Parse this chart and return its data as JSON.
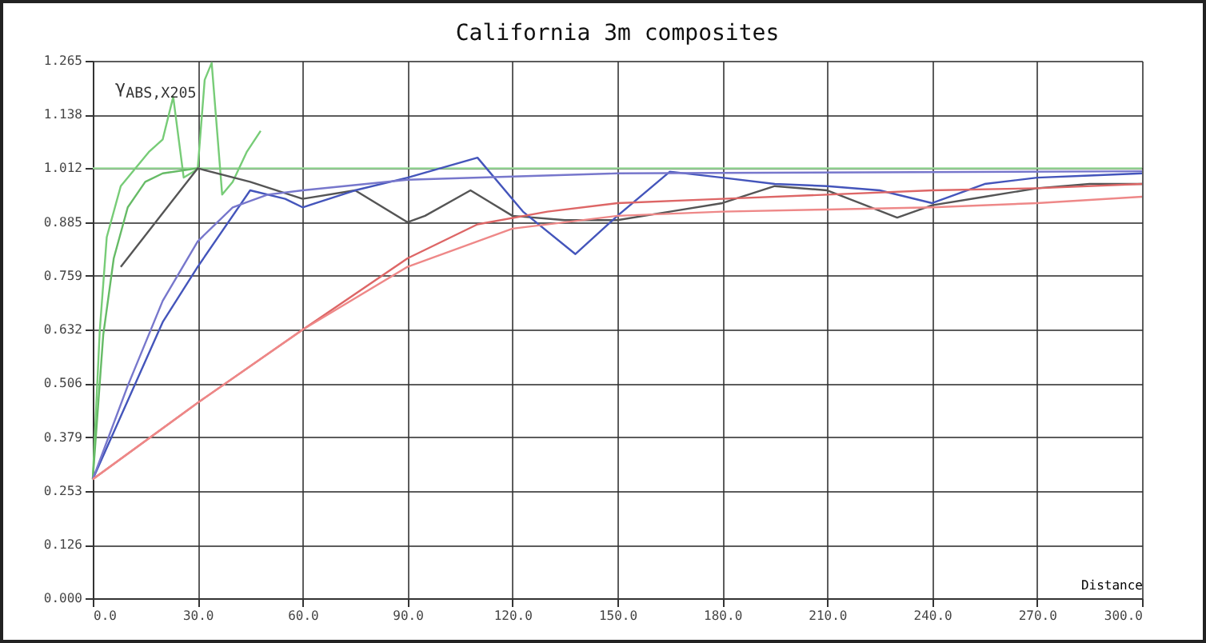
{
  "chart_data": {
    "type": "line",
    "title": "California 3m composites",
    "xlabel": "Distance",
    "ylabel": "γ$_{ABS,X205}$",
    "xlim": [
      0,
      300
    ],
    "xticks": [
      {
        "value": 0,
        "label": "0.0"
      },
      {
        "value": 30,
        "label": "30.0"
      },
      {
        "value": 60,
        "label": "60.0"
      },
      {
        "value": 90,
        "label": "90.0"
      },
      {
        "value": 120,
        "label": "120.0"
      },
      {
        "value": 150,
        "label": "150.0"
      },
      {
        "value": 180,
        "label": "180.0"
      },
      {
        "value": 210,
        "label": "210.0"
      },
      {
        "value": 240,
        "label": "240.0"
      },
      {
        "value": 270,
        "label": "270.0"
      },
      {
        "value": 300,
        "label": "300.0"
      }
    ],
    "ylim": [
      0,
      1.265
    ],
    "yticks": [
      {
        "value": 0,
        "label": "0.000"
      },
      0.126,
      0.253,
      0.379,
      0.506,
      0.632,
      0.759,
      0.885,
      1.012,
      1.138,
      1.265
    ],
    "grid": true,
    "legend": false,
    "marker": "none",
    "line_style": "solid",
    "series": [
      {
        "color": "#99dd99",
        "x": [
          0,
          300
        ],
        "values": [
          1.012,
          1.012
        ]
      },
      {
        "color": "#77cc77",
        "x": [
          0,
          2,
          4,
          8,
          12,
          16,
          20,
          23,
          26,
          30,
          32,
          34,
          37,
          40,
          44,
          48
        ],
        "values": [
          0.28,
          0.63,
          0.85,
          0.97,
          1.01,
          1.05,
          1.08,
          1.18,
          0.99,
          1.01,
          1.22,
          1.26,
          0.95,
          0.98,
          1.05,
          1.1
        ]
      },
      {
        "color": "#66bb66",
        "x": [
          0,
          3,
          6,
          10,
          15,
          20,
          30
        ],
        "values": [
          0.28,
          0.62,
          0.8,
          0.92,
          0.98,
          1.0,
          1.012
        ]
      },
      {
        "color": "#555555",
        "x": [
          8,
          30,
          45,
          60,
          75,
          90,
          95,
          108,
          120,
          135,
          150,
          165,
          180,
          195,
          210,
          230,
          240,
          255,
          270,
          285,
          300
        ],
        "values": [
          0.78,
          1.012,
          0.98,
          0.94,
          0.96,
          0.885,
          0.9,
          0.96,
          0.9,
          0.89,
          0.89,
          0.91,
          0.93,
          0.97,
          0.96,
          0.896,
          0.925,
          0.945,
          0.965,
          0.975,
          0.975
        ]
      },
      {
        "color": "#4455bb",
        "x": [
          0,
          20,
          30,
          45,
          55,
          60,
          75,
          90,
          110,
          123,
          138,
          150,
          165,
          180,
          195,
          210,
          225,
          240,
          255,
          270,
          285,
          300
        ],
        "values": [
          0.28,
          0.65,
          0.78,
          0.96,
          0.94,
          0.92,
          0.96,
          0.99,
          1.037,
          0.91,
          0.81,
          0.9,
          1.004,
          0.99,
          0.975,
          0.97,
          0.96,
          0.93,
          0.975,
          0.99,
          0.995,
          1.0
        ]
      },
      {
        "color": "#7777cc",
        "x": [
          0,
          10,
          20,
          30,
          40,
          50,
          60,
          90,
          150,
          300
        ],
        "values": [
          0.28,
          0.5,
          0.7,
          0.84,
          0.92,
          0.95,
          0.96,
          0.985,
          1.0,
          1.005
        ]
      },
      {
        "color": "#dd6666",
        "x": [
          0,
          30,
          60,
          90,
          110,
          130,
          150,
          180,
          210,
          240,
          270,
          300
        ],
        "values": [
          0.28,
          0.46,
          0.632,
          0.8,
          0.88,
          0.91,
          0.93,
          0.94,
          0.95,
          0.96,
          0.965,
          0.975
        ]
      },
      {
        "color": "#ee8888",
        "x": [
          0,
          30,
          60,
          90,
          120,
          150,
          180,
          210,
          240,
          270,
          300
        ],
        "values": [
          0.28,
          0.46,
          0.632,
          0.78,
          0.87,
          0.9,
          0.91,
          0.915,
          0.92,
          0.93,
          0.945
        ]
      }
    ]
  }
}
